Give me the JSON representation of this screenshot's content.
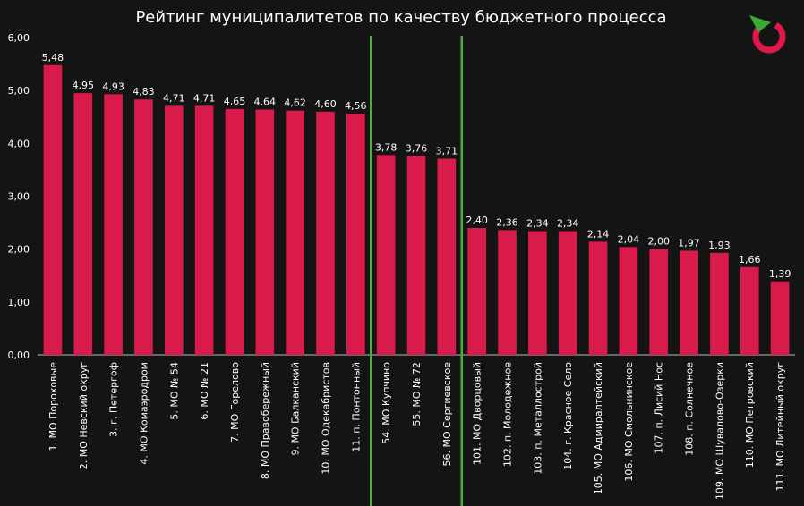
{
  "chart_data": {
    "type": "bar",
    "title": "Рейтинг муниципалитетов по качеству бюджетного процесса",
    "xlabel": "",
    "ylabel": "",
    "ylim": [
      0,
      6
    ],
    "yticks": [
      "0,00",
      "1,00",
      "2,00",
      "3,00",
      "4,00",
      "5,00",
      "6,00"
    ],
    "grid": false,
    "legend": "none",
    "categories": [
      "1. МО Пороховые",
      "2. МО Невский округ",
      "3. г. Петергоф",
      "4. МО Комаэродром",
      "5. МО № 54",
      "6. МО № 21",
      "7. МО Горелово",
      "8. МО Правобережный",
      "9. МО Балканский",
      "10. МО Одекабристов",
      "11. п. Понтонный",
      "54. МО Купчино",
      "55. МО № 72",
      "56. МО Сергиевское",
      "101. МО Дворцовый",
      "102. п. Молодежное",
      "103. п. Металлострой",
      "104. г. Красное Село",
      "105. МО Адмиралтейский",
      "106. МО Смольнинское",
      "107. п. Лисий Нос",
      "108. п. Солнечное",
      "109. МО Шувалово-Озерки",
      "110. МО Петровский",
      "111. МО Литейный округ"
    ],
    "values": [
      5.48,
      4.95,
      4.93,
      4.83,
      4.71,
      4.71,
      4.65,
      4.64,
      4.62,
      4.6,
      4.56,
      3.78,
      3.76,
      3.71,
      2.4,
      2.36,
      2.34,
      2.34,
      2.14,
      2.04,
      2.0,
      1.97,
      1.93,
      1.66,
      1.39
    ],
    "value_labels": [
      "5,48",
      "4,95",
      "4,93",
      "4,83",
      "4,71",
      "4,71",
      "4,65",
      "4,64",
      "4,62",
      "4,60",
      "4,56",
      "3,78",
      "3,76",
      "3,71",
      "2,40",
      "2,36",
      "2,34",
      "2,34",
      "2,14",
      "2,04",
      "2,00",
      "1,97",
      "1,93",
      "1,66",
      "1,39"
    ],
    "group_separators_after_index": [
      10,
      13
    ]
  },
  "colors": {
    "background": "#141414",
    "bar": "#d81b4a",
    "separator": "#4caf3a",
    "axis": "#bbbbbb",
    "text": "#ffffff",
    "logo_ring": "#e0184a",
    "logo_arrow": "#3aaa35"
  },
  "logo": {
    "icon": "circular-arrow-logo-icon"
  }
}
